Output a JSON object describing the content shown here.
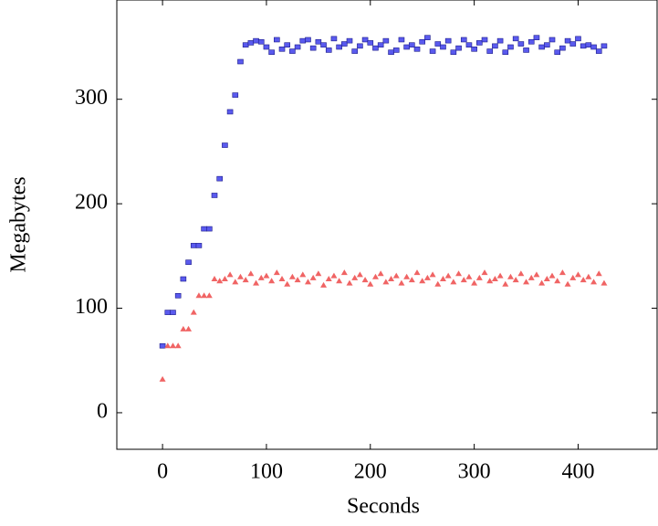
{
  "chart_data": {
    "type": "scatter",
    "x_label": "Seconds",
    "y_label": "Megabytes",
    "xlim": [
      -44,
      476
    ],
    "ylim": [
      -35,
      395
    ],
    "xticks": [
      0,
      100,
      200,
      300,
      400
    ],
    "yticks": [
      0,
      100,
      200,
      300
    ],
    "grid": false,
    "x": [
      0,
      5,
      10,
      15,
      20,
      25,
      30,
      35,
      40,
      45,
      50,
      55,
      60,
      65,
      70,
      75,
      80,
      85,
      90,
      95,
      100,
      105,
      110,
      115,
      120,
      125,
      130,
      135,
      140,
      145,
      150,
      155,
      160,
      165,
      170,
      175,
      180,
      185,
      190,
      195,
      200,
      205,
      210,
      215,
      220,
      225,
      230,
      235,
      240,
      245,
      250,
      255,
      260,
      265,
      270,
      275,
      280,
      285,
      290,
      295,
      300,
      305,
      310,
      315,
      320,
      325,
      330,
      335,
      340,
      345,
      350,
      355,
      360,
      365,
      370,
      375,
      380,
      385,
      390,
      395,
      400,
      405,
      410,
      415,
      420,
      425
    ],
    "series": [
      {
        "color": "#5a5aee",
        "marker": "square",
        "values": [
          64,
          96,
          96,
          112,
          128,
          144,
          160,
          160,
          176,
          176,
          208,
          224,
          256,
          288,
          304,
          336,
          352,
          354,
          356,
          355,
          350,
          345,
          357,
          348,
          352,
          346,
          350,
          356,
          357,
          349,
          355,
          352,
          347,
          358,
          350,
          353,
          356,
          346,
          351,
          357,
          354,
          349,
          352,
          356,
          345,
          347,
          357,
          350,
          352,
          348,
          355,
          359,
          346,
          353,
          350,
          356,
          345,
          349,
          357,
          352,
          348,
          354,
          357,
          346,
          351,
          356,
          345,
          350,
          358,
          353,
          347,
          355,
          359,
          350,
          352,
          357,
          345,
          349,
          356,
          353,
          358,
          351,
          352,
          350,
          346,
          351
        ]
      },
      {
        "color": "#f06464",
        "marker": "triangle",
        "values": [
          32,
          64,
          64,
          64,
          80,
          80,
          96,
          112,
          112,
          112,
          128,
          126,
          128,
          132,
          125,
          130,
          127,
          133,
          124,
          129,
          131,
          126,
          134,
          128,
          123,
          130,
          127,
          132,
          125,
          129,
          133,
          122,
          128,
          131,
          126,
          134,
          124,
          129,
          132,
          127,
          123,
          130,
          133,
          125,
          128,
          131,
          124,
          130,
          127,
          134,
          126,
          129,
          132,
          123,
          128,
          131,
          125,
          133,
          127,
          130,
          124,
          129,
          134,
          126,
          128,
          131,
          123,
          130,
          127,
          133,
          125,
          129,
          132,
          124,
          128,
          131,
          126,
          134,
          123,
          129,
          132,
          127,
          130,
          125,
          133,
          124
        ]
      }
    ]
  }
}
